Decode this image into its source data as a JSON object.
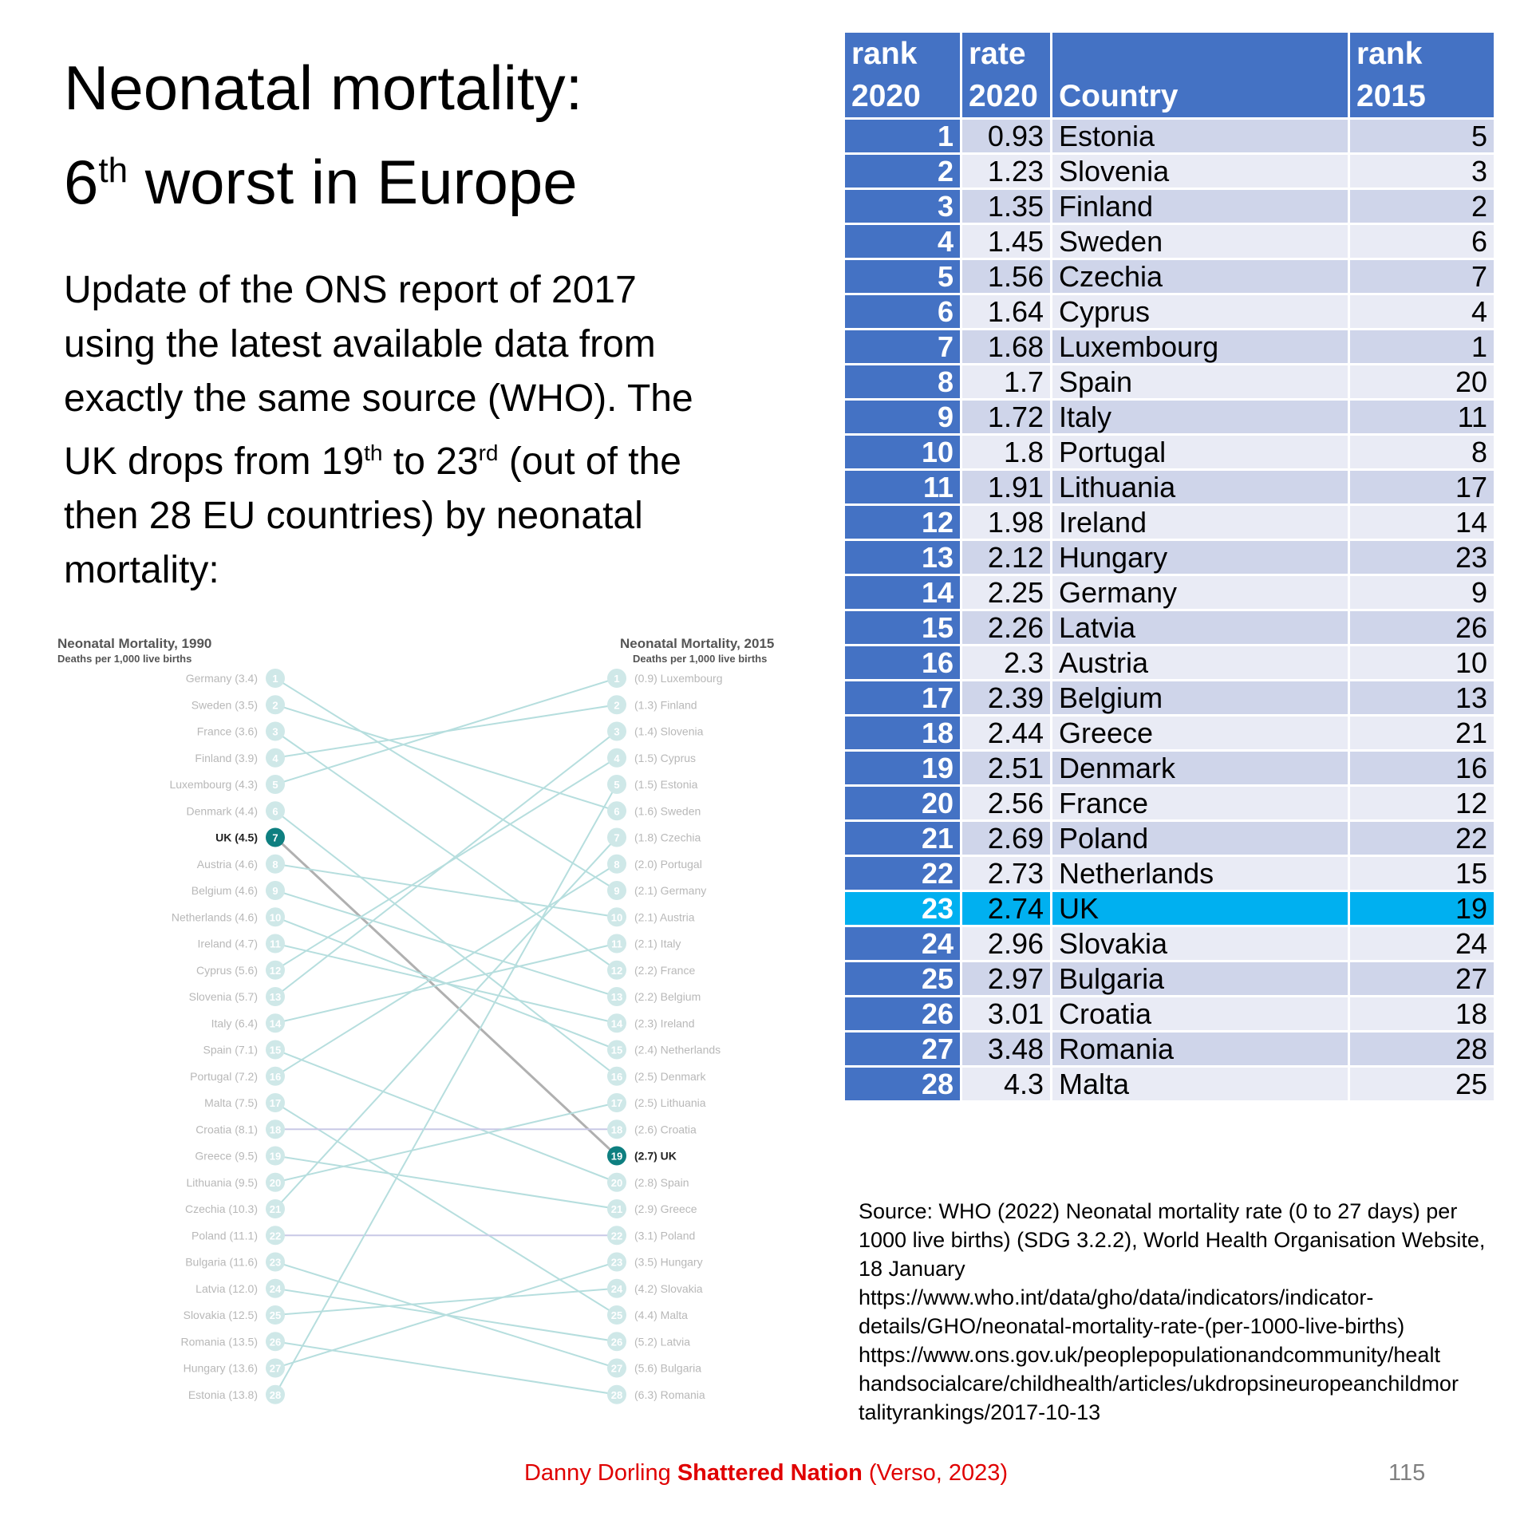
{
  "title": {
    "line1": "Neonatal mortality:",
    "line2_num": "6",
    "line2_sup": "th",
    "line2_rest": " worst in Europe"
  },
  "intro": {
    "p1": "Update of the ONS report of 2017 using the latest available data from exactly the same source (WHO). The UK drops from 19",
    "sup1": "th",
    "p2": " to 23",
    "sup2": "rd",
    "p3": " (out of the then 28 EU countries) by neonatal mortality:"
  },
  "chart_data": {
    "type": "slope",
    "left_title": "Neonatal Mortality, 1990",
    "left_subtitle": "Deaths per 1,000 live births",
    "right_title": "Neonatal Mortality, 2015",
    "right_subtitle": "Deaths per 1,000 live births",
    "highlight": "UK",
    "left": [
      {
        "country": "Germany",
        "value": 3.4
      },
      {
        "country": "Sweden",
        "value": 3.5
      },
      {
        "country": "France",
        "value": 3.6
      },
      {
        "country": "Finland",
        "value": 3.9
      },
      {
        "country": "Luxembourg",
        "value": 4.3
      },
      {
        "country": "Denmark",
        "value": 4.4
      },
      {
        "country": "UK",
        "value": 4.5
      },
      {
        "country": "Austria",
        "value": 4.6
      },
      {
        "country": "Belgium",
        "value": 4.6
      },
      {
        "country": "Netherlands",
        "value": 4.6
      },
      {
        "country": "Ireland",
        "value": 4.7
      },
      {
        "country": "Cyprus",
        "value": 5.6
      },
      {
        "country": "Slovenia",
        "value": 5.7
      },
      {
        "country": "Italy",
        "value": 6.4
      },
      {
        "country": "Spain",
        "value": 7.1
      },
      {
        "country": "Portugal",
        "value": 7.2
      },
      {
        "country": "Malta",
        "value": 7.5
      },
      {
        "country": "Croatia",
        "value": 8.1
      },
      {
        "country": "Greece",
        "value": 9.5
      },
      {
        "country": "Lithuania",
        "value": 9.5
      },
      {
        "country": "Czechia",
        "value": 10.3
      },
      {
        "country": "Poland",
        "value": 11.1
      },
      {
        "country": "Bulgaria",
        "value": 11.6
      },
      {
        "country": "Latvia",
        "value": 12.0
      },
      {
        "country": "Slovakia",
        "value": 12.5
      },
      {
        "country": "Romania",
        "value": 13.5
      },
      {
        "country": "Hungary",
        "value": 13.6
      },
      {
        "country": "Estonia",
        "value": 13.8
      }
    ],
    "right": [
      {
        "country": "Luxembourg",
        "value": 0.9
      },
      {
        "country": "Finland",
        "value": 1.3
      },
      {
        "country": "Slovenia",
        "value": 1.4
      },
      {
        "country": "Cyprus",
        "value": 1.5
      },
      {
        "country": "Estonia",
        "value": 1.5
      },
      {
        "country": "Sweden",
        "value": 1.6
      },
      {
        "country": "Czechia",
        "value": 1.8
      },
      {
        "country": "Portugal",
        "value": 2.0
      },
      {
        "country": "Germany",
        "value": 2.1
      },
      {
        "country": "Austria",
        "value": 2.1
      },
      {
        "country": "Italy",
        "value": 2.1
      },
      {
        "country": "France",
        "value": 2.2
      },
      {
        "country": "Belgium",
        "value": 2.2
      },
      {
        "country": "Ireland",
        "value": 2.3
      },
      {
        "country": "Netherlands",
        "value": 2.4
      },
      {
        "country": "Denmark",
        "value": 2.5
      },
      {
        "country": "Lithuania",
        "value": 2.5
      },
      {
        "country": "Croatia",
        "value": 2.6
      },
      {
        "country": "UK",
        "value": 2.7
      },
      {
        "country": "Spain",
        "value": 2.8
      },
      {
        "country": "Greece",
        "value": 2.9
      },
      {
        "country": "Poland",
        "value": 3.1
      },
      {
        "country": "Hungary",
        "value": 3.5
      },
      {
        "country": "Slovakia",
        "value": 4.2
      },
      {
        "country": "Malta",
        "value": 4.4
      },
      {
        "country": "Latvia",
        "value": 5.2
      },
      {
        "country": "Bulgaria",
        "value": 5.6
      },
      {
        "country": "Romania",
        "value": 6.3
      }
    ],
    "left_labels": [
      "Germany (3.4)",
      "Sweden (3.5)",
      "France (3.6)",
      "Finland (3.9)",
      "Luxembourg (4.3)",
      "Denmark (4.4)",
      "UK (4.5)",
      "Austria (4.6)",
      "Belgium (4.6)",
      "Netherlands (4.6)",
      "Ireland (4.7)",
      "Cyprus (5.6)",
      "Slovenia (5.7)",
      "Italy (6.4)",
      "Spain (7.1)",
      "Portugal (7.2)",
      "Malta (7.5)",
      "Croatia (8.1)",
      "Greece (9.5)",
      "Lithuania (9.5)",
      "Czechia (10.3)",
      "Poland (11.1)",
      "Bulgaria (11.6)",
      "Latvia (12.0)",
      "Slovakia (12.5)",
      "Romania (13.5)",
      "Hungary (13.6)",
      "Estonia (13.8)"
    ],
    "right_labels": [
      "(0.9) Luxembourg",
      "(1.3) Finland",
      "(1.4) Slovenia",
      "(1.5) Cyprus",
      "(1.5) Estonia",
      "(1.6) Sweden",
      "(1.8) Czechia",
      "(2.0) Portugal",
      "(2.1) Germany",
      "(2.1) Austria",
      "(2.1) Italy",
      "(2.2) France",
      "(2.2) Belgium",
      "(2.3) Ireland",
      "(2.4) Netherlands",
      "(2.5) Denmark",
      "(2.5) Lithuania",
      "(2.6) Croatia",
      "(2.7) UK",
      "(2.8) Spain",
      "(2.9) Greece",
      "(3.1) Poland",
      "(3.5) Hungary",
      "(4.2) Slovakia",
      "(4.4) Malta",
      "(5.2) Latvia",
      "(5.6) Bulgaria",
      "(6.3) Romania"
    ]
  },
  "table": {
    "headers": [
      {
        "l1": "rank",
        "l2": "2020"
      },
      {
        "l1": "rate",
        "l2": "2020"
      },
      {
        "l1": "",
        "l2": "Country"
      },
      {
        "l1": "rank",
        "l2": "2015"
      }
    ],
    "rows": [
      [
        "1",
        "0.93",
        "Estonia",
        "5"
      ],
      [
        "2",
        "1.23",
        "Slovenia",
        "3"
      ],
      [
        "3",
        "1.35",
        "Finland",
        "2"
      ],
      [
        "4",
        "1.45",
        "Sweden",
        "6"
      ],
      [
        "5",
        "1.56",
        "Czechia",
        "7"
      ],
      [
        "6",
        "1.64",
        "Cyprus",
        "4"
      ],
      [
        "7",
        "1.68",
        "Luxembourg",
        "1"
      ],
      [
        "8",
        "1.7",
        "Spain",
        "20"
      ],
      [
        "9",
        "1.72",
        "Italy",
        "11"
      ],
      [
        "10",
        "1.8",
        "Portugal",
        "8"
      ],
      [
        "11",
        "1.91",
        "Lithuania",
        "17"
      ],
      [
        "12",
        "1.98",
        "Ireland",
        "14"
      ],
      [
        "13",
        "2.12",
        "Hungary",
        "23"
      ],
      [
        "14",
        "2.25",
        "Germany",
        "9"
      ],
      [
        "15",
        "2.26",
        "Latvia",
        "26"
      ],
      [
        "16",
        "2.3",
        "Austria",
        "10"
      ],
      [
        "17",
        "2.39",
        "Belgium",
        "13"
      ],
      [
        "18",
        "2.44",
        "Greece",
        "21"
      ],
      [
        "19",
        "2.51",
        "Denmark",
        "16"
      ],
      [
        "20",
        "2.56",
        "France",
        "12"
      ],
      [
        "21",
        "2.69",
        "Poland",
        "22"
      ],
      [
        "22",
        "2.73",
        "Netherlands",
        "15"
      ],
      [
        "23",
        "2.74",
        "UK",
        "19"
      ],
      [
        "24",
        "2.96",
        "Slovakia",
        "24"
      ],
      [
        "25",
        "2.97",
        "Bulgaria",
        "27"
      ],
      [
        "26",
        "3.01",
        "Croatia",
        "18"
      ],
      [
        "27",
        "3.48",
        "Romania",
        "28"
      ],
      [
        "28",
        "4.3",
        "Malta",
        "25"
      ]
    ],
    "highlight_country": "UK"
  },
  "source": {
    "lines": [
      "Source: WHO (2022) Neonatal mortality rate (0 to 27 days) per",
      "1000 live births) (SDG 3.2.2), World Health Organisation Website,",
      "18 January",
      "https://www.who.int/data/gho/data/indicators/indicator-",
      "details/GHO/neonatal-mortality-rate-(per-1000-live-births)",
      "https://www.ons.gov.uk/peoplepopulationandcommunity/healt",
      "handsocialcare/childhealth/articles/ukdropsineuropeanchildmor",
      "talityrankings/2017-10-13"
    ]
  },
  "footer": {
    "author": "Danny Dorling ",
    "book": "Shattered Nation",
    "publisher": " (Verso, 2023)",
    "page": "115"
  },
  "colors": {
    "header_blue": "#4472c4",
    "row_dark": "#cfd5ea",
    "row_light": "#e9ebf5",
    "highlight": "#00b0f0",
    "slope_line": "#b6dede",
    "uk_teal": "#0e7f80",
    "footer_red": "#e00000"
  }
}
